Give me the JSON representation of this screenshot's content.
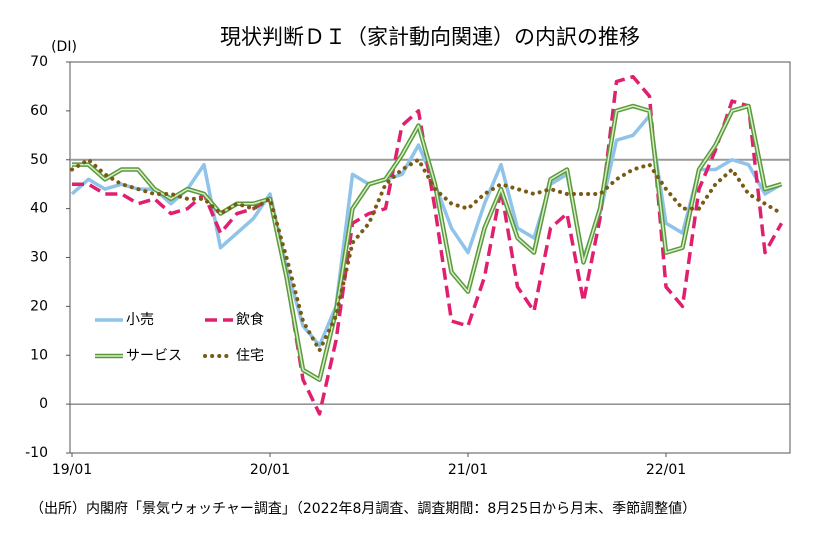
{
  "chart_data": {
    "type": "line",
    "title": "現状判断ＤＩ（家計動向関連）の内訳の推移",
    "y_axis_label": "(DI)",
    "source": "（出所）内閣府「景気ウォッチャー調査」（2022年8月調査、調査期間：8月25日から月末、季節調整値）",
    "categories": [
      "19/01",
      null,
      null,
      null,
      null,
      null,
      null,
      null,
      null,
      null,
      null,
      null,
      "20/01",
      null,
      null,
      null,
      null,
      null,
      null,
      null,
      null,
      null,
      null,
      null,
      "21/01",
      null,
      null,
      null,
      null,
      null,
      null,
      null,
      null,
      null,
      null,
      null,
      "22/01",
      null,
      null,
      null,
      null,
      null,
      null,
      null
    ],
    "ylim": [
      -10,
      70
    ],
    "yticks": [
      -10,
      0,
      10,
      20,
      30,
      40,
      50,
      60,
      70
    ],
    "reference_line": 50,
    "series": [
      {
        "name": "小売",
        "color": "#8fc3ea",
        "style": "solid",
        "values": [
          43,
          46,
          44,
          45,
          44,
          44,
          41,
          44,
          49,
          32,
          35,
          38,
          43,
          28,
          16,
          12,
          20,
          47,
          45,
          46,
          47,
          53,
          45,
          36,
          31,
          41,
          49,
          36,
          34,
          45,
          47,
          30,
          39,
          54,
          55,
          59,
          37,
          35,
          48,
          48,
          50,
          49,
          43,
          45
        ]
      },
      {
        "name": "飲食",
        "color": "#e0206e",
        "style": "dashed",
        "values": [
          45,
          45,
          43,
          43,
          41,
          42,
          39,
          40,
          43,
          35,
          39,
          40,
          42,
          26,
          5,
          -2,
          13,
          37,
          39,
          40,
          57,
          60,
          40,
          17,
          16,
          26,
          44,
          24,
          19,
          36,
          39,
          21,
          38,
          66,
          67,
          63,
          24,
          20,
          44,
          52,
          62,
          61,
          31,
          37
        ]
      },
      {
        "name": "サービス",
        "color": "#5a9a3c",
        "style": "double",
        "values": [
          49,
          49,
          46,
          48,
          48,
          44,
          42,
          44,
          43,
          39,
          41,
          41,
          42,
          26,
          7,
          5,
          19,
          40,
          45,
          46,
          51,
          57,
          45,
          27,
          23,
          36,
          44,
          34,
          31,
          46,
          48,
          29,
          40,
          60,
          61,
          60,
          31,
          32,
          48,
          53,
          60,
          61,
          44,
          45
        ]
      },
      {
        "name": "住宅",
        "color": "#7a5a14",
        "style": "dotted",
        "values": [
          48,
          50,
          47,
          45,
          44,
          43,
          43,
          42,
          42,
          39,
          41,
          40,
          42,
          30,
          17,
          11,
          18,
          33,
          37,
          45,
          48,
          50,
          44,
          41,
          40,
          43,
          45,
          44,
          43,
          44,
          43,
          43,
          43,
          46,
          48,
          49,
          44,
          40,
          40,
          45,
          48,
          43,
          41,
          39
        ]
      }
    ]
  }
}
